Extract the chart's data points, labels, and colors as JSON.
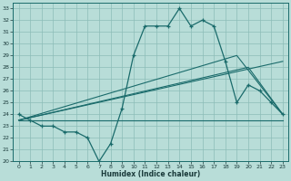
{
  "xlabel": "Humidex (Indice chaleur)",
  "bg_color": "#b8ddd8",
  "grid_color": "#8cbcb8",
  "line_color": "#1a6b6b",
  "xlim": [
    -0.5,
    23.5
  ],
  "ylim": [
    20,
    33.5
  ],
  "yticks": [
    20,
    21,
    22,
    23,
    24,
    25,
    26,
    27,
    28,
    29,
    30,
    31,
    32,
    33
  ],
  "xticks": [
    0,
    1,
    2,
    3,
    4,
    5,
    6,
    7,
    8,
    9,
    10,
    11,
    12,
    13,
    14,
    15,
    16,
    17,
    18,
    19,
    20,
    21,
    22,
    23
  ],
  "line1_x": [
    0,
    1,
    2,
    3,
    4,
    5,
    6,
    7,
    8,
    9,
    10,
    11,
    12,
    13,
    14,
    15,
    16,
    17,
    18,
    19,
    20,
    21,
    22,
    23
  ],
  "line1_y": [
    24.0,
    23.5,
    23.0,
    23.0,
    22.5,
    22.5,
    22.0,
    20.0,
    21.5,
    24.5,
    29.0,
    31.5,
    31.5,
    31.5,
    33.0,
    31.5,
    32.0,
    31.5,
    28.5,
    25.0,
    26.5,
    26.0,
    25.0,
    24.0
  ],
  "line2_x": [
    0,
    23
  ],
  "line2_y": [
    23.5,
    23.5
  ],
  "line3_x": [
    0,
    23
  ],
  "line3_y": [
    23.5,
    28.5
  ],
  "line4_x": [
    0,
    20,
    23
  ],
  "line4_y": [
    23.5,
    28.0,
    24.0
  ],
  "line5_x": [
    0,
    19,
    23
  ],
  "line5_y": [
    23.5,
    29.0,
    24.0
  ]
}
